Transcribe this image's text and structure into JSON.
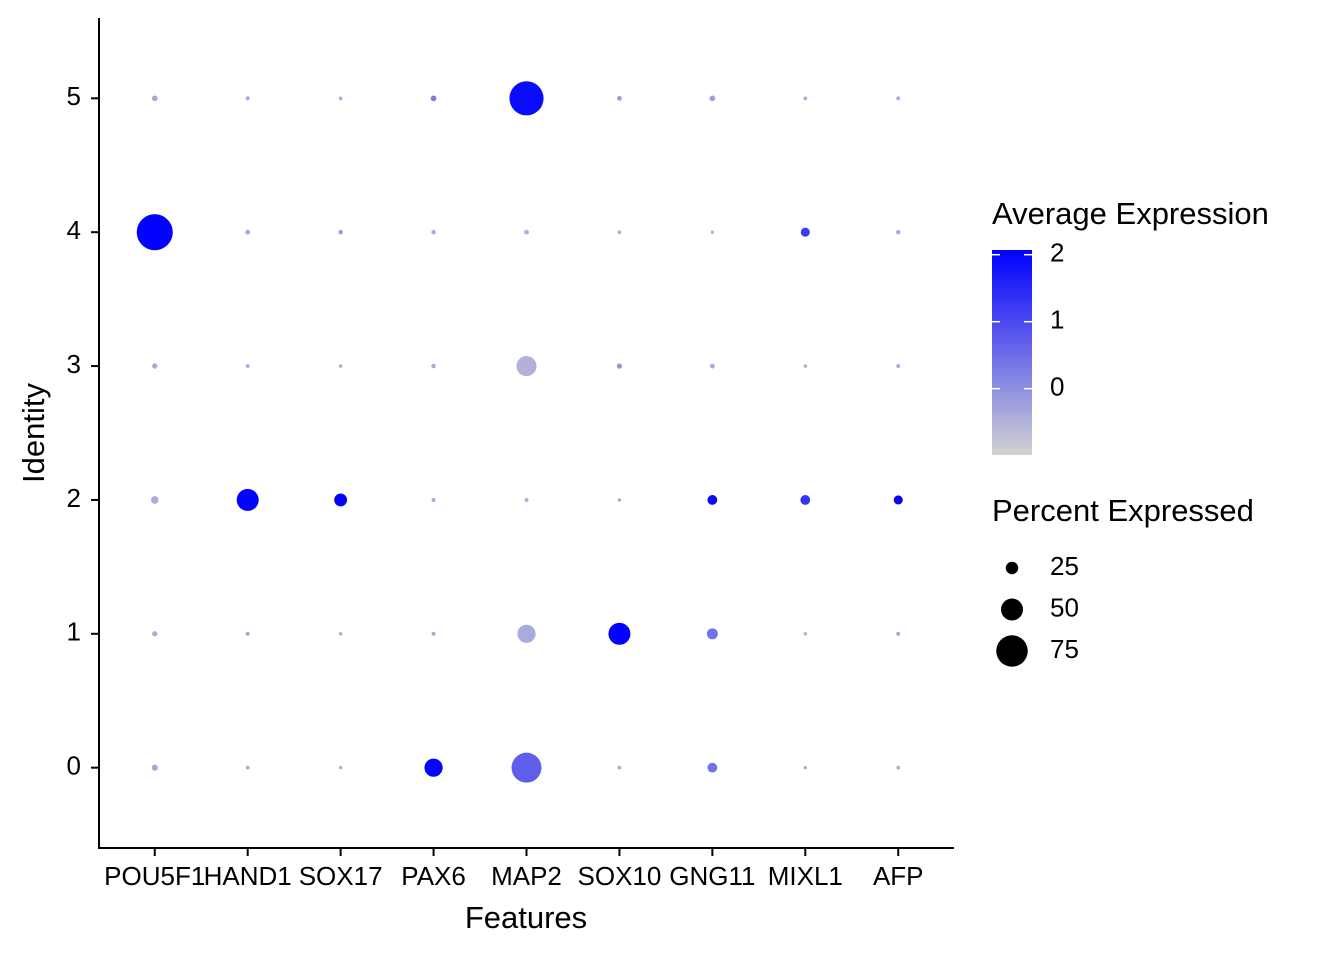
{
  "chart_data": {
    "type": "dotplot",
    "x_label": "Features",
    "y_label": "Identity",
    "categories": [
      "POU5F1",
      "HAND1",
      "SOX17",
      "PAX6",
      "MAP2",
      "SOX10",
      "GNG11",
      "MIXL1",
      "AFP"
    ],
    "ylim": [
      -0.6,
      5.6
    ],
    "yticks": [
      0,
      1,
      2,
      3,
      4,
      5
    ],
    "rows": [
      {
        "identity": 0,
        "pct": [
          8,
          2,
          1,
          40,
          71,
          2,
          18,
          1,
          2
        ],
        "avg": [
          -0.35,
          -0.4,
          -0.4,
          2.0,
          0.7,
          -0.4,
          0.4,
          -0.4,
          -0.4
        ]
      },
      {
        "identity": 1,
        "pct": [
          6,
          3,
          1,
          3,
          40,
          50,
          21,
          1,
          3
        ],
        "avg": [
          -0.4,
          -0.4,
          -0.4,
          -0.4,
          -0.4,
          2.04,
          0.4,
          -0.4,
          -0.4
        ]
      },
      {
        "identity": 2,
        "pct": [
          12,
          50,
          26,
          3,
          3,
          1,
          18,
          18,
          16
        ],
        "avg": [
          -0.4,
          2.04,
          2.0,
          -0.4,
          -0.5,
          -0.4,
          1.9,
          1.3,
          2.0
        ]
      },
      {
        "identity": 3,
        "pct": [
          6,
          2,
          1,
          4,
          45,
          6,
          5,
          1,
          3
        ],
        "avg": [
          -0.35,
          -0.4,
          -0.4,
          -0.4,
          -0.5,
          -0.1,
          -0.4,
          -0.4,
          -0.45
        ]
      },
      {
        "identity": 4,
        "pct": [
          87,
          5,
          4,
          4,
          5,
          2,
          1,
          16,
          4
        ],
        "avg": [
          2.04,
          -0.4,
          -0.2,
          -0.4,
          -0.5,
          -0.4,
          -0.5,
          1.2,
          -0.4
        ]
      },
      {
        "identity": 5,
        "pct": [
          7,
          3,
          2,
          7,
          82,
          5,
          7,
          2,
          3
        ],
        "avg": [
          -0.35,
          -0.4,
          -0.4,
          0.3,
          1.9,
          -0.2,
          -0.2,
          -0.4,
          -0.45
        ]
      }
    ],
    "color_legend": {
      "title": "Average Expression",
      "lim": [
        -0.99,
        2.07
      ],
      "ticks": [
        0,
        1,
        2
      ],
      "low": "#d3d3d3",
      "high": "#0000ff"
    },
    "size_legend": {
      "title": "Percent Expressed",
      "values": [
        25,
        50,
        75
      ],
      "color": "#000000"
    }
  }
}
